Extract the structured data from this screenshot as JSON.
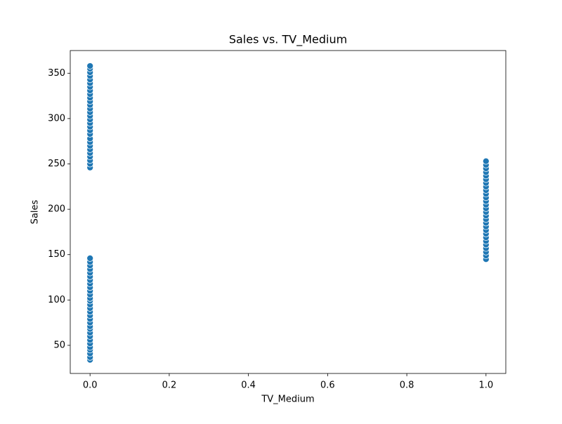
{
  "chart_data": {
    "type": "scatter",
    "title": "Sales vs. TV_Medium",
    "xlabel": "TV_Medium",
    "ylabel": "Sales",
    "color": "#1f77b4",
    "xlim": [
      -0.05,
      1.05
    ],
    "ylim": [
      19,
      375
    ],
    "xticks": [
      {
        "value": 0,
        "label": "0.0"
      },
      {
        "value": 0.2,
        "label": "0.2"
      },
      {
        "value": 0.4,
        "label": "0.4"
      },
      {
        "value": 0.6,
        "label": "0.6"
      },
      {
        "value": 0.8,
        "label": "0.8"
      },
      {
        "value": 1,
        "label": "1.0"
      }
    ],
    "yticks": [
      50,
      100,
      150,
      200,
      250,
      300,
      350
    ],
    "x": [
      0,
      0,
      0,
      0,
      0,
      0,
      0,
      0,
      0,
      0,
      0,
      0,
      0,
      0,
      0,
      0,
      0,
      0,
      0,
      0,
      0,
      0,
      0,
      0,
      0,
      0,
      0,
      0,
      0,
      0,
      0,
      0,
      0,
      0,
      0,
      0,
      0,
      0,
      0,
      0,
      0,
      0,
      0,
      0,
      0,
      0,
      0,
      0,
      0,
      0,
      0,
      0,
      0,
      0,
      0,
      0,
      0,
      0,
      0,
      1,
      1,
      1,
      1,
      1,
      1,
      1,
      1,
      1,
      1,
      1,
      1,
      1,
      1,
      1,
      1,
      1,
      1,
      1,
      1,
      1,
      1,
      1,
      1,
      1,
      1,
      1,
      1
    ],
    "values": [
      34,
      37,
      41,
      45,
      48,
      52,
      56,
      60,
      64,
      68,
      71,
      75,
      79,
      83,
      87,
      91,
      95,
      99,
      102,
      106,
      110,
      114,
      118,
      122,
      126,
      130,
      134,
      138,
      142,
      146,
      246,
      250,
      254,
      258,
      262,
      266,
      270,
      274,
      278,
      283,
      287,
      291,
      295,
      299,
      303,
      307,
      311,
      315,
      319,
      323,
      327,
      331,
      335,
      339,
      343,
      347,
      351,
      355,
      358,
      145,
      149,
      153,
      157,
      161,
      165,
      169,
      173,
      177,
      181,
      185,
      189,
      193,
      197,
      201,
      205,
      209,
      213,
      217,
      221,
      225,
      229,
      233,
      237,
      241,
      245,
      249,
      253
    ]
  }
}
